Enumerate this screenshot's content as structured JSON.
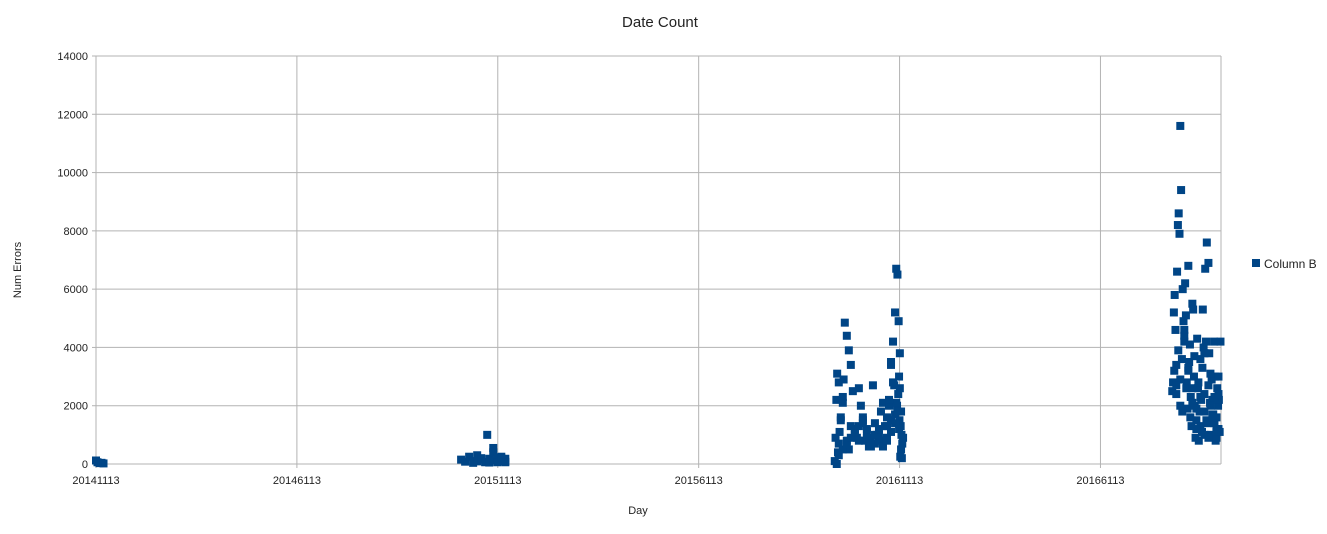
{
  "chart_data": {
    "type": "scatter",
    "title": "Date Count",
    "xlabel": "Day",
    "ylabel": "Num Errors",
    "xlim": [
      20141113,
      20169113
    ],
    "ylim": [
      0,
      14000
    ],
    "x_ticks": [
      "20141113",
      "20146113",
      "20151113",
      "20156113",
      "20161113",
      "20166113"
    ],
    "y_ticks": [
      "0",
      "2000",
      "4000",
      "6000",
      "8000",
      "10000",
      "12000",
      "14000"
    ],
    "grid": true,
    "legend_position": "right",
    "colors": {
      "series": "#004586",
      "grid": "#b3b3b3",
      "axis": "#b3b3b3"
    },
    "series": [
      {
        "name": "Column B",
        "x": [
          20141113,
          20141150,
          20141200,
          20141250,
          20141300,
          20150200,
          20150300,
          20150400,
          20150500,
          20150600,
          20150700,
          20150800,
          20150900,
          20151000,
          20151100,
          20151200,
          20151300,
          20151000,
          20151100,
          20151200,
          20151300,
          20150500,
          20150600,
          20150700,
          20150800,
          20150900,
          20151000,
          20151100,
          20151200,
          20151300,
          20150850,
          20159500,
          20159520,
          20159540,
          20159560,
          20159600,
          20159650,
          20159700,
          20159750,
          20159800,
          20159850,
          20159900,
          20159950,
          20160000,
          20160050,
          20160100,
          20160150,
          20160200,
          20160250,
          20160300,
          20160350,
          20160400,
          20160450,
          20160500,
          20160550,
          20160600,
          20160650,
          20160700,
          20160750,
          20160800,
          20160850,
          20160900,
          20160950,
          20161000,
          20161030,
          20161060,
          20161090,
          20161120,
          20161150,
          20159550,
          20159580,
          20159600,
          20159620,
          20159650,
          20159700,
          20159720,
          20159800,
          20159850,
          20159900,
          20160000,
          20160100,
          20160200,
          20160300,
          20160400,
          20160500,
          20160600,
          20160700,
          20160800,
          20160900,
          20161000,
          20161050,
          20161080,
          20161100,
          20161120,
          20161140,
          20161160,
          20161180,
          20161200,
          20161150,
          20161170,
          20161130,
          20161110,
          20161060,
          20161030,
          20160980,
          20160950,
          20160900,
          20160850,
          20160800,
          20159600,
          20159700,
          20159800,
          20159900,
          20160000,
          20160100,
          20160200,
          20160300,
          20160400,
          20160500,
          20160600,
          20160700,
          20160800,
          20160900,
          20161000,
          20161100,
          20167900,
          20167920,
          20167940,
          20167960,
          20167980,
          20168000,
          20168020,
          20168040,
          20168060,
          20168080,
          20168100,
          20168120,
          20168140,
          20168160,
          20168180,
          20168200,
          20168220,
          20168240,
          20168260,
          20168280,
          20168300,
          20168320,
          20168340,
          20168360,
          20168380,
          20168400,
          20168420,
          20168440,
          20168460,
          20168480,
          20168500,
          20168520,
          20168540,
          20168560,
          20168580,
          20168600,
          20168620,
          20168640,
          20168660,
          20168680,
          20168700,
          20168720,
          20168740,
          20168760,
          20168780,
          20168800,
          20168820,
          20168840,
          20168860,
          20168880,
          20168900,
          20168920,
          20168940,
          20168960,
          20168980,
          20169000,
          20169020,
          20169040,
          20169060,
          20169080,
          20169100,
          20167950,
          20168000,
          20168050,
          20168100,
          20168150,
          20168200,
          20168250,
          20168300,
          20168350,
          20168400,
          20168450,
          20168500,
          20168550,
          20168600,
          20168650,
          20168700,
          20168750,
          20168800,
          20168850,
          20168900,
          20168950,
          20169000,
          20169050,
          20168700,
          20168850,
          20168950,
          20169000,
          20169050,
          20168000,
          20168100,
          20168200,
          20168300,
          20168400,
          20168500,
          20168600,
          20168700,
          20168800,
          20168900,
          20169000,
          20169050
        ],
        "y": [
          120,
          60,
          30,
          40,
          20,
          150,
          80,
          250,
          100,
          300,
          200,
          60,
          180,
          400,
          120,
          250,
          80,
          550,
          220,
          100,
          180,
          40,
          90,
          160,
          70,
          50,
          130,
          60,
          210,
          60,
          1000,
          100,
          900,
          2200,
          3100,
          2800,
          1500,
          2100,
          4850,
          4400,
          3900,
          3400,
          2500,
          1200,
          900,
          2600,
          2000,
          1600,
          800,
          1200,
          600,
          900,
          2700,
          1400,
          1000,
          800,
          1800,
          2100,
          1300,
          900,
          2000,
          3500,
          4200,
          5200,
          6700,
          6500,
          4900,
          2600,
          1800,
          0,
          400,
          700,
          1100,
          1600,
          2300,
          2900,
          800,
          500,
          1300,
          1000,
          800,
          1400,
          1100,
          600,
          700,
          1000,
          800,
          1300,
          1500,
          1700,
          2000,
          2400,
          3000,
          3800,
          1300,
          1000,
          700,
          900,
          500,
          200,
          250,
          1500,
          1800,
          2100,
          2700,
          2800,
          3400,
          2200,
          1600,
          300,
          500,
          700,
          900,
          1100,
          1300,
          1500,
          900,
          700,
          1000,
          1200,
          600,
          800,
          1100,
          1400,
          1200,
          2500,
          2800,
          5200,
          5800,
          4600,
          3400,
          6600,
          8200,
          8600,
          7900,
          11600,
          9400,
          3600,
          6000,
          4900,
          4200,
          6200,
          5100,
          2800,
          1900,
          6800,
          3500,
          4100,
          2300,
          1300,
          5500,
          5300,
          3000,
          2000,
          900,
          1500,
          4300,
          2600,
          800,
          1800,
          3600,
          2200,
          1100,
          5300,
          4000,
          3800,
          6700,
          4200,
          7600,
          1400,
          6900,
          3800,
          2100,
          1000,
          2900,
          2200,
          1700,
          4200,
          3000,
          800,
          1200,
          2600,
          2000,
          2200,
          1100,
          4200,
          3200,
          2400,
          3900,
          2900,
          1800,
          4400,
          2600,
          3300,
          1600,
          2100,
          3700,
          1900,
          2800,
          1300,
          3300,
          2400,
          1500,
          2700,
          3100,
          1700,
          2300,
          1600,
          1200,
          1000,
          2000,
          1400,
          900,
          3000,
          2700,
          2000,
          4600,
          3200,
          2600,
          1200,
          2300,
          1800,
          900,
          1600,
          1100,
          2400
        ]
      }
    ]
  }
}
